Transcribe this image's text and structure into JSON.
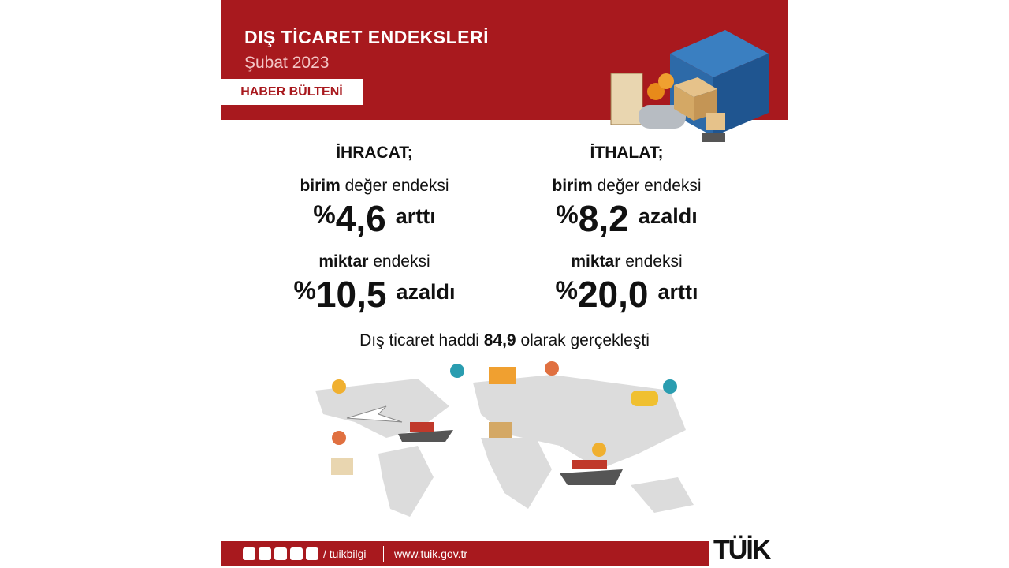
{
  "header": {
    "title": "DIŞ TİCARET ENDEKSLERİ",
    "subtitle": "Şubat 2023",
    "badge": "HABER BÜLTENİ"
  },
  "exports": {
    "heading": "İHRACAT;",
    "items": [
      {
        "label_bold": "birim",
        "label_rest": "değer endeksi",
        "prefix": "%",
        "value": "4,6",
        "change": "arttı"
      },
      {
        "label_bold": "miktar",
        "label_rest": "endeksi",
        "prefix": "%",
        "value": "10,5",
        "change": "azaldı"
      }
    ]
  },
  "imports": {
    "heading": "İTHALAT;",
    "items": [
      {
        "label_bold": "birim",
        "label_rest": "değer endeksi",
        "prefix": "%",
        "value": "8,2",
        "change": "azaldı"
      },
      {
        "label_bold": "miktar",
        "label_rest": "endeksi",
        "prefix": "%",
        "value": "20,0",
        "change": "arttı"
      }
    ]
  },
  "terms_of_trade": {
    "before": "Dış ticaret haddi",
    "value": "84,9",
    "after": "olarak gerçekleşti"
  },
  "footer": {
    "handle": "/ tuikbilgi",
    "url": "www.tuik.gov.tr",
    "logo": "TÜİK"
  }
}
